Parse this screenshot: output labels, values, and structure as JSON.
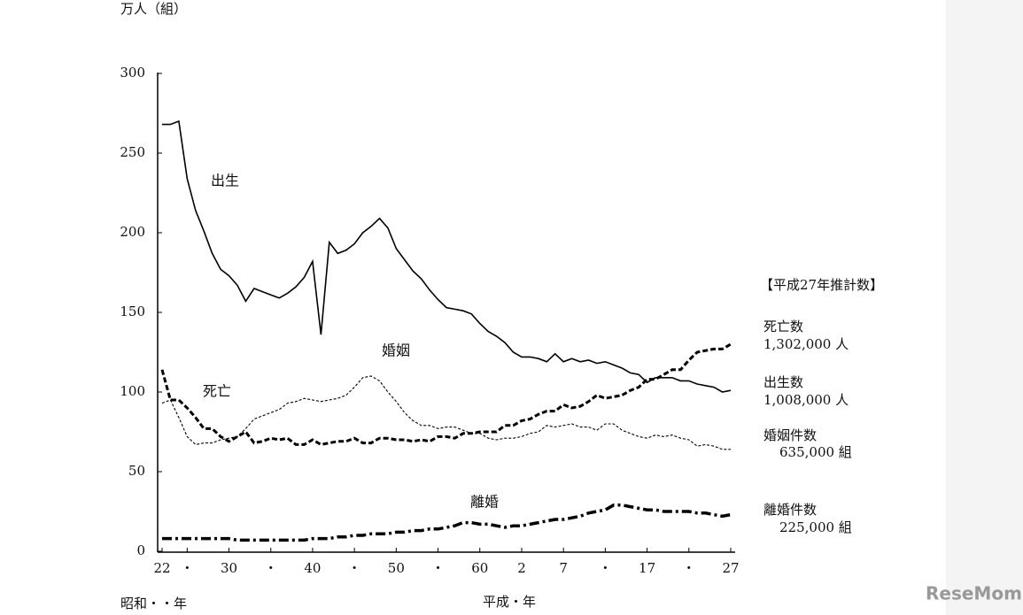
{
  "chart_data": {
    "type": "line",
    "y_axis_label": "万人（組）",
    "x_axis_label_left": "昭和・・年",
    "x_axis_label_center": "平成・年",
    "categories": [
      "22",
      null,
      null,
      "・",
      null,
      null,
      null,
      null,
      "30",
      null,
      null,
      null,
      null,
      "・",
      null,
      null,
      null,
      null,
      "40",
      null,
      null,
      null,
      null,
      "・",
      null,
      null,
      null,
      null,
      "50",
      null,
      null,
      null,
      null,
      "・",
      null,
      null,
      null,
      null,
      "60",
      null,
      null,
      null,
      null,
      "2",
      null,
      null,
      null,
      null,
      "7",
      null,
      null,
      null,
      null,
      "・",
      null,
      null,
      null,
      null,
      "17",
      null,
      null,
      null,
      null,
      "・",
      null,
      null,
      null,
      null,
      "27"
    ],
    "series": [
      {
        "name": "出生",
        "color": "#000000",
        "dash": "none",
        "width": 1.6,
        "values": [
          268,
          268,
          270,
          234,
          214,
          201,
          187,
          177,
          173,
          167,
          157,
          165,
          163,
          161,
          159,
          162,
          166,
          172,
          182,
          136,
          194,
          187,
          189,
          193,
          200,
          204,
          209,
          203,
          190,
          183,
          176,
          171,
          164,
          158,
          153,
          152,
          151,
          149,
          143,
          138,
          135,
          131,
          125,
          122,
          122,
          121,
          119,
          124,
          119,
          121,
          119,
          120,
          118,
          119,
          117,
          115,
          112,
          111,
          106,
          109,
          109,
          109,
          107,
          107,
          105,
          104,
          103,
          100,
          101
        ]
      },
      {
        "name": "死亡",
        "color": "#000000",
        "dash": "6,3",
        "width": 3,
        "values": [
          114,
          95,
          95,
          90,
          84,
          77,
          77,
          72,
          69,
          72,
          75,
          68,
          69,
          71,
          70,
          71,
          67,
          67,
          70,
          67,
          68,
          69,
          69,
          71,
          68,
          68,
          71,
          71,
          70,
          70,
          69,
          70,
          69,
          72,
          72,
          71,
          74,
          74,
          75,
          75,
          75,
          79,
          79,
          82,
          83,
          86,
          88,
          88,
          92,
          90,
          91,
          94,
          98,
          96,
          97,
          98,
          101,
          103,
          108,
          108,
          111,
          114,
          114,
          120,
          125,
          126,
          127,
          127,
          130
        ]
      },
      {
        "name": "婚姻",
        "color": "#000000",
        "dash": "3,2",
        "width": 1.1,
        "values": [
          93,
          95,
          84,
          72,
          67,
          68,
          68,
          70,
          71,
          72,
          77,
          83,
          85,
          87,
          89,
          93,
          94,
          96,
          95,
          94,
          95,
          96,
          98,
          103,
          109,
          110,
          107,
          100,
          94,
          87,
          82,
          79,
          79,
          77,
          78,
          78,
          76,
          74,
          74,
          71,
          70,
          71,
          71,
          72,
          74,
          75,
          79,
          78,
          79,
          80,
          78,
          78,
          76,
          80,
          80,
          76,
          74,
          72,
          71,
          73,
          72,
          73,
          71,
          70,
          66,
          67,
          66,
          64,
          64
        ]
      },
      {
        "name": "離婚",
        "color": "#000000",
        "dash": "11,4,3,4",
        "width": 3.5,
        "values": [
          8,
          8,
          8,
          8,
          8,
          8,
          8,
          8,
          8,
          7,
          7,
          7,
          7,
          7,
          7,
          7,
          7,
          7,
          8,
          8,
          8,
          9,
          9,
          10,
          10,
          11,
          11,
          11,
          12,
          12,
          13,
          13,
          14,
          14,
          15,
          16,
          18,
          18,
          17,
          17,
          16,
          15,
          16,
          16,
          17,
          18,
          19,
          20,
          20,
          21,
          22,
          24,
          25,
          26,
          29,
          29,
          28,
          27,
          26,
          26,
          25,
          25,
          25,
          25,
          24,
          24,
          23,
          22,
          23
        ]
      }
    ],
    "ylim": [
      0,
      300
    ],
    "yticks": [
      0,
      50,
      100,
      150,
      200,
      250,
      300
    ],
    "grid": false,
    "estimates_title": "【平成27年推計数】",
    "estimates": [
      {
        "label": "死亡数",
        "value": "1,302,000 人"
      },
      {
        "label": "出生数",
        "value": "1,008,000 人"
      },
      {
        "label": "婚姻件数",
        "value": "635,000 組"
      },
      {
        "label": "離婚件数",
        "value": "225,000 組"
      }
    ],
    "watermark": "ReseMom"
  }
}
